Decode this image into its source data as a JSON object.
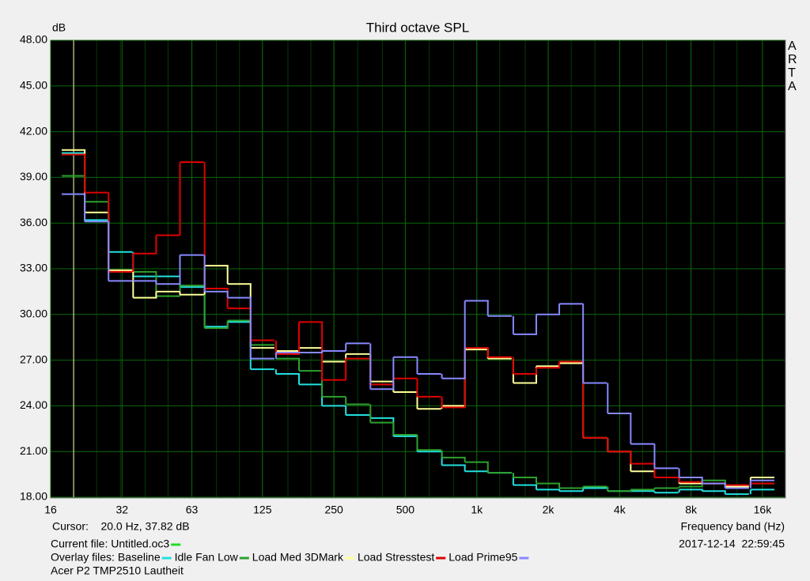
{
  "chart_data": {
    "type": "step",
    "title": "Third octave SPL",
    "y_label": "dB",
    "x_label": "Frequency band (Hz)",
    "side_label": "ARTA",
    "log_x": true,
    "grid": true,
    "grid_color": "#0a6a0a",
    "plot_background": "#000000",
    "xlim": [
      16,
      20000
    ],
    "ylim": [
      18,
      48
    ],
    "xticks": [
      16,
      32,
      63,
      125,
      250,
      500,
      {
        "value": 1000,
        "label": "1k"
      },
      {
        "value": 2000,
        "label": "2k"
      },
      {
        "value": 4000,
        "label": "4k"
      },
      {
        "value": 8000,
        "label": "8k"
      },
      {
        "value": 16000,
        "label": "16k"
      }
    ],
    "yticks": [
      {
        "value": 18,
        "label": "18.00"
      },
      {
        "value": 21,
        "label": "21.00"
      },
      {
        "value": 24,
        "label": "24.00"
      },
      {
        "value": 27,
        "label": "27.00"
      },
      {
        "value": 30,
        "label": "30.00"
      },
      {
        "value": 33,
        "label": "33.00"
      },
      {
        "value": 36,
        "label": "36.00"
      },
      {
        "value": 39,
        "label": "39.00"
      },
      {
        "value": 42,
        "label": "42.00"
      },
      {
        "value": 45,
        "label": "45.00"
      },
      {
        "value": 48,
        "label": "48.00"
      }
    ],
    "cursor": {
      "x": 20,
      "color": "#ffffb0",
      "text": "Cursor:    20.0 Hz, 37.82 dB"
    },
    "current_file": {
      "text": "Current file: Untitled.oc3",
      "color": "#22dd22"
    },
    "overlay_label": "Overlay files:",
    "timestamp": "2017-12-14  22:59:45",
    "note": "Acer P2 TMP2510 Lautheit",
    "x": [
      20,
      25,
      31.5,
      40,
      50,
      63,
      80,
      100,
      125,
      160,
      200,
      250,
      315,
      400,
      500,
      630,
      800,
      1000,
      1250,
      1600,
      2000,
      2500,
      3150,
      4000,
      5000,
      6300,
      8000,
      10000,
      12500,
      16000
    ],
    "series": [
      {
        "name": "Baseline",
        "color": "#22e0e0",
        "values": [
          40.6,
          36.2,
          34.1,
          32.5,
          32.5,
          31.8,
          29.2,
          29.5,
          26.4,
          26.1,
          25.4,
          24.0,
          23.4,
          23.2,
          22.0,
          21.0,
          20.1,
          19.7,
          19.6,
          18.8,
          18.5,
          18.4,
          18.6,
          18.4,
          18.4,
          18.3,
          18.5,
          18.4,
          18.2,
          18.5
        ]
      },
      {
        "name": "Idle Fan Low",
        "color": "#2ea02e",
        "values": [
          39.1,
          37.4,
          32.8,
          32.8,
          31.2,
          31.9,
          29.1,
          29.6,
          28.0,
          27.1,
          26.3,
          24.6,
          24.1,
          22.9,
          22.1,
          21.1,
          20.6,
          20.3,
          19.6,
          19.3,
          18.9,
          18.6,
          18.7,
          18.4,
          18.5,
          18.6,
          18.7,
          19.1,
          18.7,
          18.9
        ]
      },
      {
        "name": "Load Med 3DMark",
        "color": "#ffff99",
        "values": [
          40.8,
          36.7,
          32.9,
          31.1,
          31.5,
          31.3,
          33.2,
          32.0,
          27.8,
          27.6,
          27.8,
          26.9,
          27.4,
          25.6,
          24.9,
          23.8,
          24.0,
          27.7,
          27.1,
          25.5,
          26.6,
          26.8,
          21.9,
          21.0,
          19.7,
          19.3,
          18.9,
          18.9,
          18.7,
          19.3
        ]
      },
      {
        "name": "Load Stresstest",
        "color": "#e00000",
        "values": [
          40.5,
          38.0,
          32.8,
          34.0,
          35.2,
          40.0,
          31.7,
          30.4,
          28.3,
          27.4,
          29.5,
          25.7,
          27.1,
          25.4,
          25.8,
          24.6,
          23.9,
          27.8,
          27.2,
          26.1,
          26.5,
          26.9,
          21.9,
          21.0,
          20.2,
          19.3,
          19.0,
          18.9,
          18.8,
          18.9
        ]
      },
      {
        "name": "Load Prime95",
        "color": "#8888ff",
        "values": [
          37.9,
          36.1,
          32.2,
          32.2,
          32.0,
          33.9,
          31.5,
          31.1,
          27.1,
          27.5,
          27.5,
          27.6,
          28.1,
          25.1,
          27.2,
          26.1,
          25.8,
          30.9,
          29.9,
          28.7,
          30.0,
          30.7,
          25.5,
          23.5,
          21.5,
          19.9,
          19.3,
          18.9,
          18.6,
          19.1
        ]
      }
    ]
  }
}
